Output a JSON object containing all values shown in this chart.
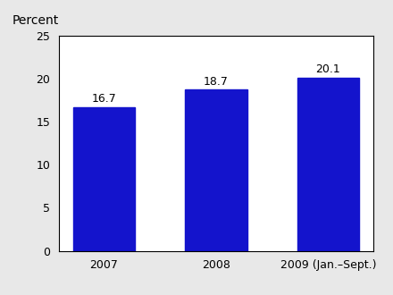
{
  "categories": [
    "2007",
    "2008",
    "2009 (Jan.–Sept.)"
  ],
  "values": [
    16.7,
    18.7,
    20.1
  ],
  "bar_color": "#1414cc",
  "ylabel": "Percent",
  "ylim": [
    0,
    25
  ],
  "yticks": [
    0,
    5,
    10,
    15,
    20,
    25
  ],
  "value_labels": [
    "16.7",
    "18.7",
    "20.1"
  ],
  "background_color": "#e8e8e8",
  "plot_bg_color": "#ffffff",
  "label_fontsize": 9,
  "tick_fontsize": 9,
  "ylabel_fontsize": 10
}
